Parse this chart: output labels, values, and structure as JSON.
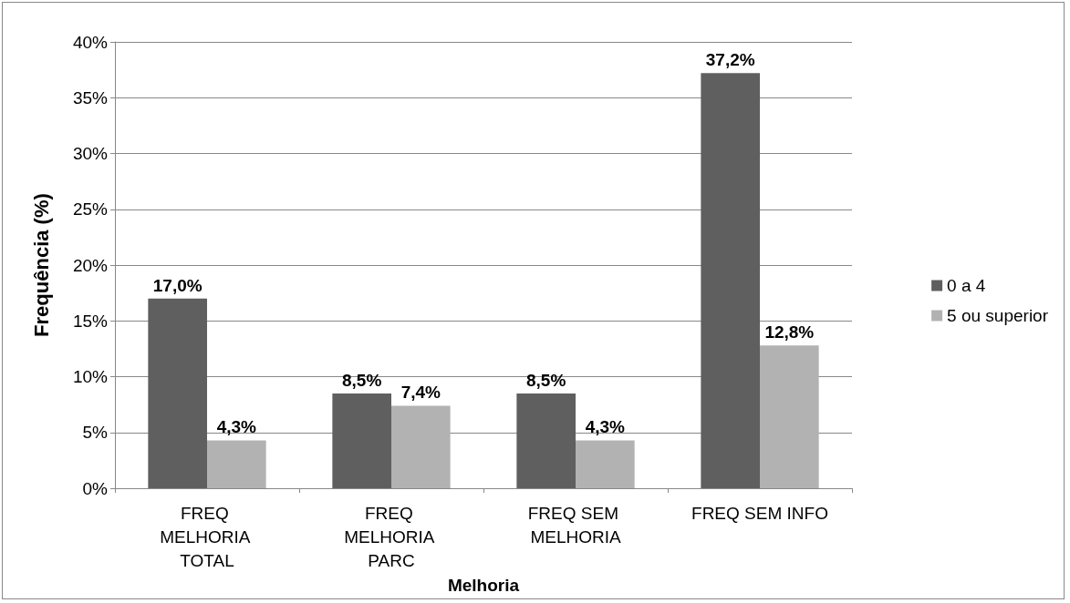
{
  "chart_data": {
    "type": "bar",
    "xlabel": "Melhoria",
    "ylabel": "Frequência (%)",
    "categories": [
      "FREQ MELHORIA TOTAL",
      "FREQ MELHORIA PARC",
      "FREQ SEM MELHORIA",
      "FREQ SEM INFO"
    ],
    "series": [
      {
        "name": "0 a 4",
        "color": "#5f5f5f",
        "values": [
          17.0,
          8.5,
          8.5,
          37.2
        ],
        "value_labels": [
          "17,0%",
          "8,5%",
          "8,5%",
          "37,2%"
        ]
      },
      {
        "name": "5 ou superior",
        "color": "#b2b2b2",
        "values": [
          4.3,
          7.4,
          4.3,
          12.8
        ],
        "value_labels": [
          "4,3%",
          "7,4%",
          "4,3%",
          "12,8%"
        ]
      }
    ],
    "ylim": [
      0,
      40
    ],
    "yticks": [
      {
        "value": 0,
        "label": "0%"
      },
      {
        "value": 5,
        "label": "5%"
      },
      {
        "value": 10,
        "label": "10%"
      },
      {
        "value": 15,
        "label": "15%"
      },
      {
        "value": 20,
        "label": "20%"
      },
      {
        "value": 25,
        "label": "25%"
      },
      {
        "value": 30,
        "label": "30%"
      },
      {
        "value": 35,
        "label": "35%"
      },
      {
        "value": 40,
        "label": "40%"
      }
    ],
    "grid": "y",
    "legend": "right"
  }
}
